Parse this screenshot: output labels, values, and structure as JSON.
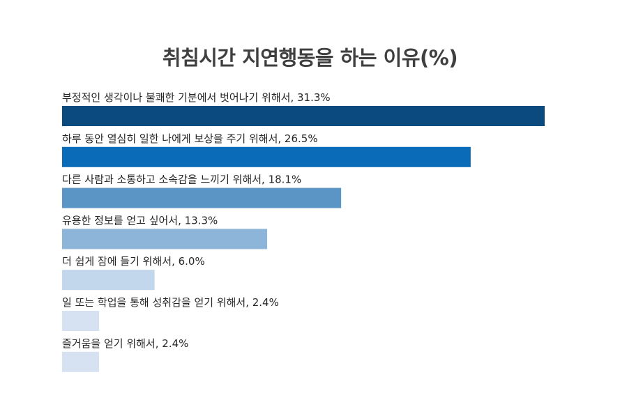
{
  "chart_data": {
    "type": "bar",
    "orientation": "horizontal",
    "title": "취침시간 지연행동을 하는 이유(%)",
    "xlim": [
      0,
      31.3
    ],
    "grid": false,
    "legend": "none",
    "categories": [
      "부정적인 생각이나 불쾌한 기분에서 벗어나기 위해서",
      "하루 동안 열심히 일한 나에게 보상을 주기 위해서",
      "다른 사람과 소통하고 소속감을 느끼기 위해서",
      "유용한 정보를 얻고 싶어서",
      "더 쉽게 잠에 들기 위해서",
      "일 또는 학업을 통해 성취감을 얻기 위해서",
      "즐거움을 얻기 위해서"
    ],
    "values": [
      31.3,
      26.5,
      18.1,
      13.3,
      6.0,
      2.4,
      2.4
    ],
    "labels": [
      "부정적인 생각이나 불쾌한 기분에서 벗어나기 위해서, 31.3%",
      "하루 동안 열심히 일한 나에게 보상을 주기 위해서, 26.5%",
      "다른 사람과 소통하고 소속감을 느끼기 위해서, 18.1%",
      "유용한 정보를 얻고 싶어서, 13.3%",
      "더 쉽게 잠에 들기 위해서, 6.0%",
      "일 또는 학업을 통해 성취감을 얻기 위해서, 2.4%",
      "즐거움을 얻기 위해서, 2.4%"
    ],
    "colors": [
      "#0b4a7e",
      "#0a6bb8",
      "#5b95c6",
      "#8db4d9",
      "#c2d6ec",
      "#d6e1f2",
      "#d6e1f2"
    ]
  }
}
